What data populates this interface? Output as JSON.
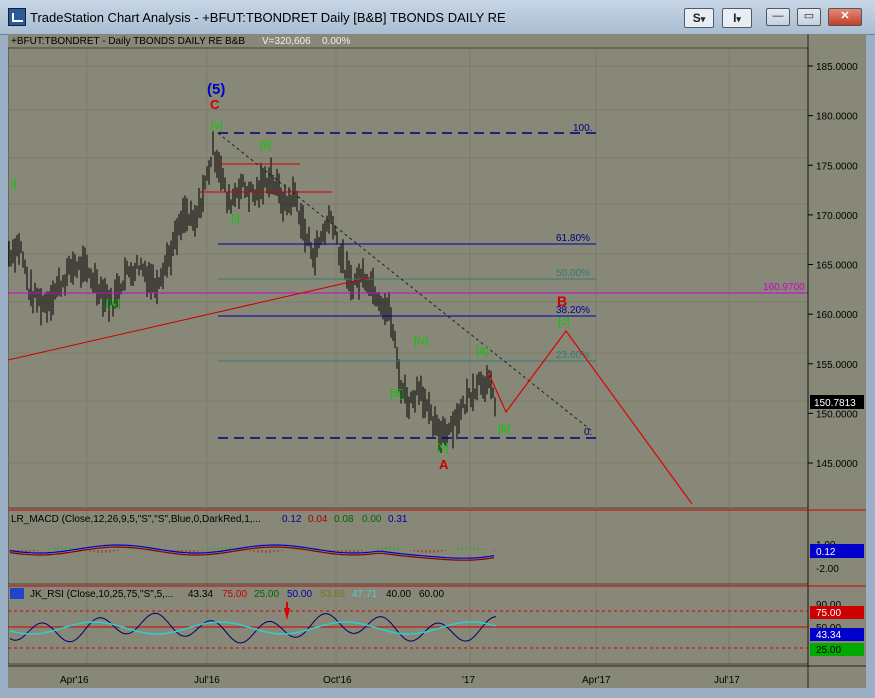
{
  "window": {
    "title": "TradeStation Chart Analysis - +BFUT:TBONDRET Daily [B&B] TBONDS DAILY RE",
    "btn_s": "S",
    "btn_i": "I",
    "btn_drop1": "▾",
    "btn_drop2": "▾",
    "minimize": "—",
    "restore": "▭",
    "close": "✕"
  },
  "chart": {
    "header_symbol": "+BFUT:TBONDRET - Daily  TBONDS DAILY RE  B&B",
    "header_volume": "V=320,606",
    "header_change": "0.00%",
    "price_ticks": [
      "185.0000",
      "180.0000",
      "175.0000",
      "170.0000",
      "165.0000",
      "160.0000",
      "155.0000",
      "150.0000",
      "145.0000"
    ],
    "last_price": "150.7813",
    "hline_label": "160.9700",
    "fib_labels": [
      "100.",
      "61.80%",
      "50.00%",
      "38.20%",
      "23.60%",
      "0."
    ],
    "wave_labels": {
      "w5": "(5)",
      "C": "C",
      "v_top": "[v]",
      "ii": "[ii]",
      "i_left": "i]",
      "i": "[i]",
      "iv_left": "[iv]",
      "iii": "[iii]",
      "iv": "[iv]",
      "v_bot": "[v]",
      "A": "A",
      "a": "[a]",
      "b": "[b]",
      "B": "B",
      "c": "[c]"
    },
    "date_ticks": [
      "Apr'16",
      "Jul'16",
      "Oct'16",
      "'17",
      "Apr'17",
      "Jul'17"
    ]
  },
  "macd": {
    "label": "LR_MACD (Close,12,26,9,5,\"S\",\"S\",Blue,0,DarkRed,1,...",
    "v1": "0.12",
    "v2": "0.04",
    "v3": "0.08",
    "v4": "0.00",
    "v5": "0.31",
    "ticks": [
      "1.00",
      "0.12",
      "-2.00"
    ]
  },
  "rsi": {
    "label": "JK_RSI (Close,10,25,75,\"S\",5,...",
    "v1": "43.34",
    "v2": "75.00",
    "v3": "25.00",
    "v4": "50.00",
    "v5": "53.86",
    "v6": "47.71",
    "v7": "40.00",
    "v8": "60.00",
    "ticks": [
      "75.00",
      "43.34",
      "25.00"
    ],
    "tick_top": "90.00",
    "tick_mid": "50.00"
  },
  "colors": {
    "bg": "#888878",
    "bars": "#000000",
    "green": "#00cc00",
    "red": "#cc0000",
    "blue": "#000080",
    "magenta": "#cc00cc",
    "teal": "#2e7d72"
  }
}
